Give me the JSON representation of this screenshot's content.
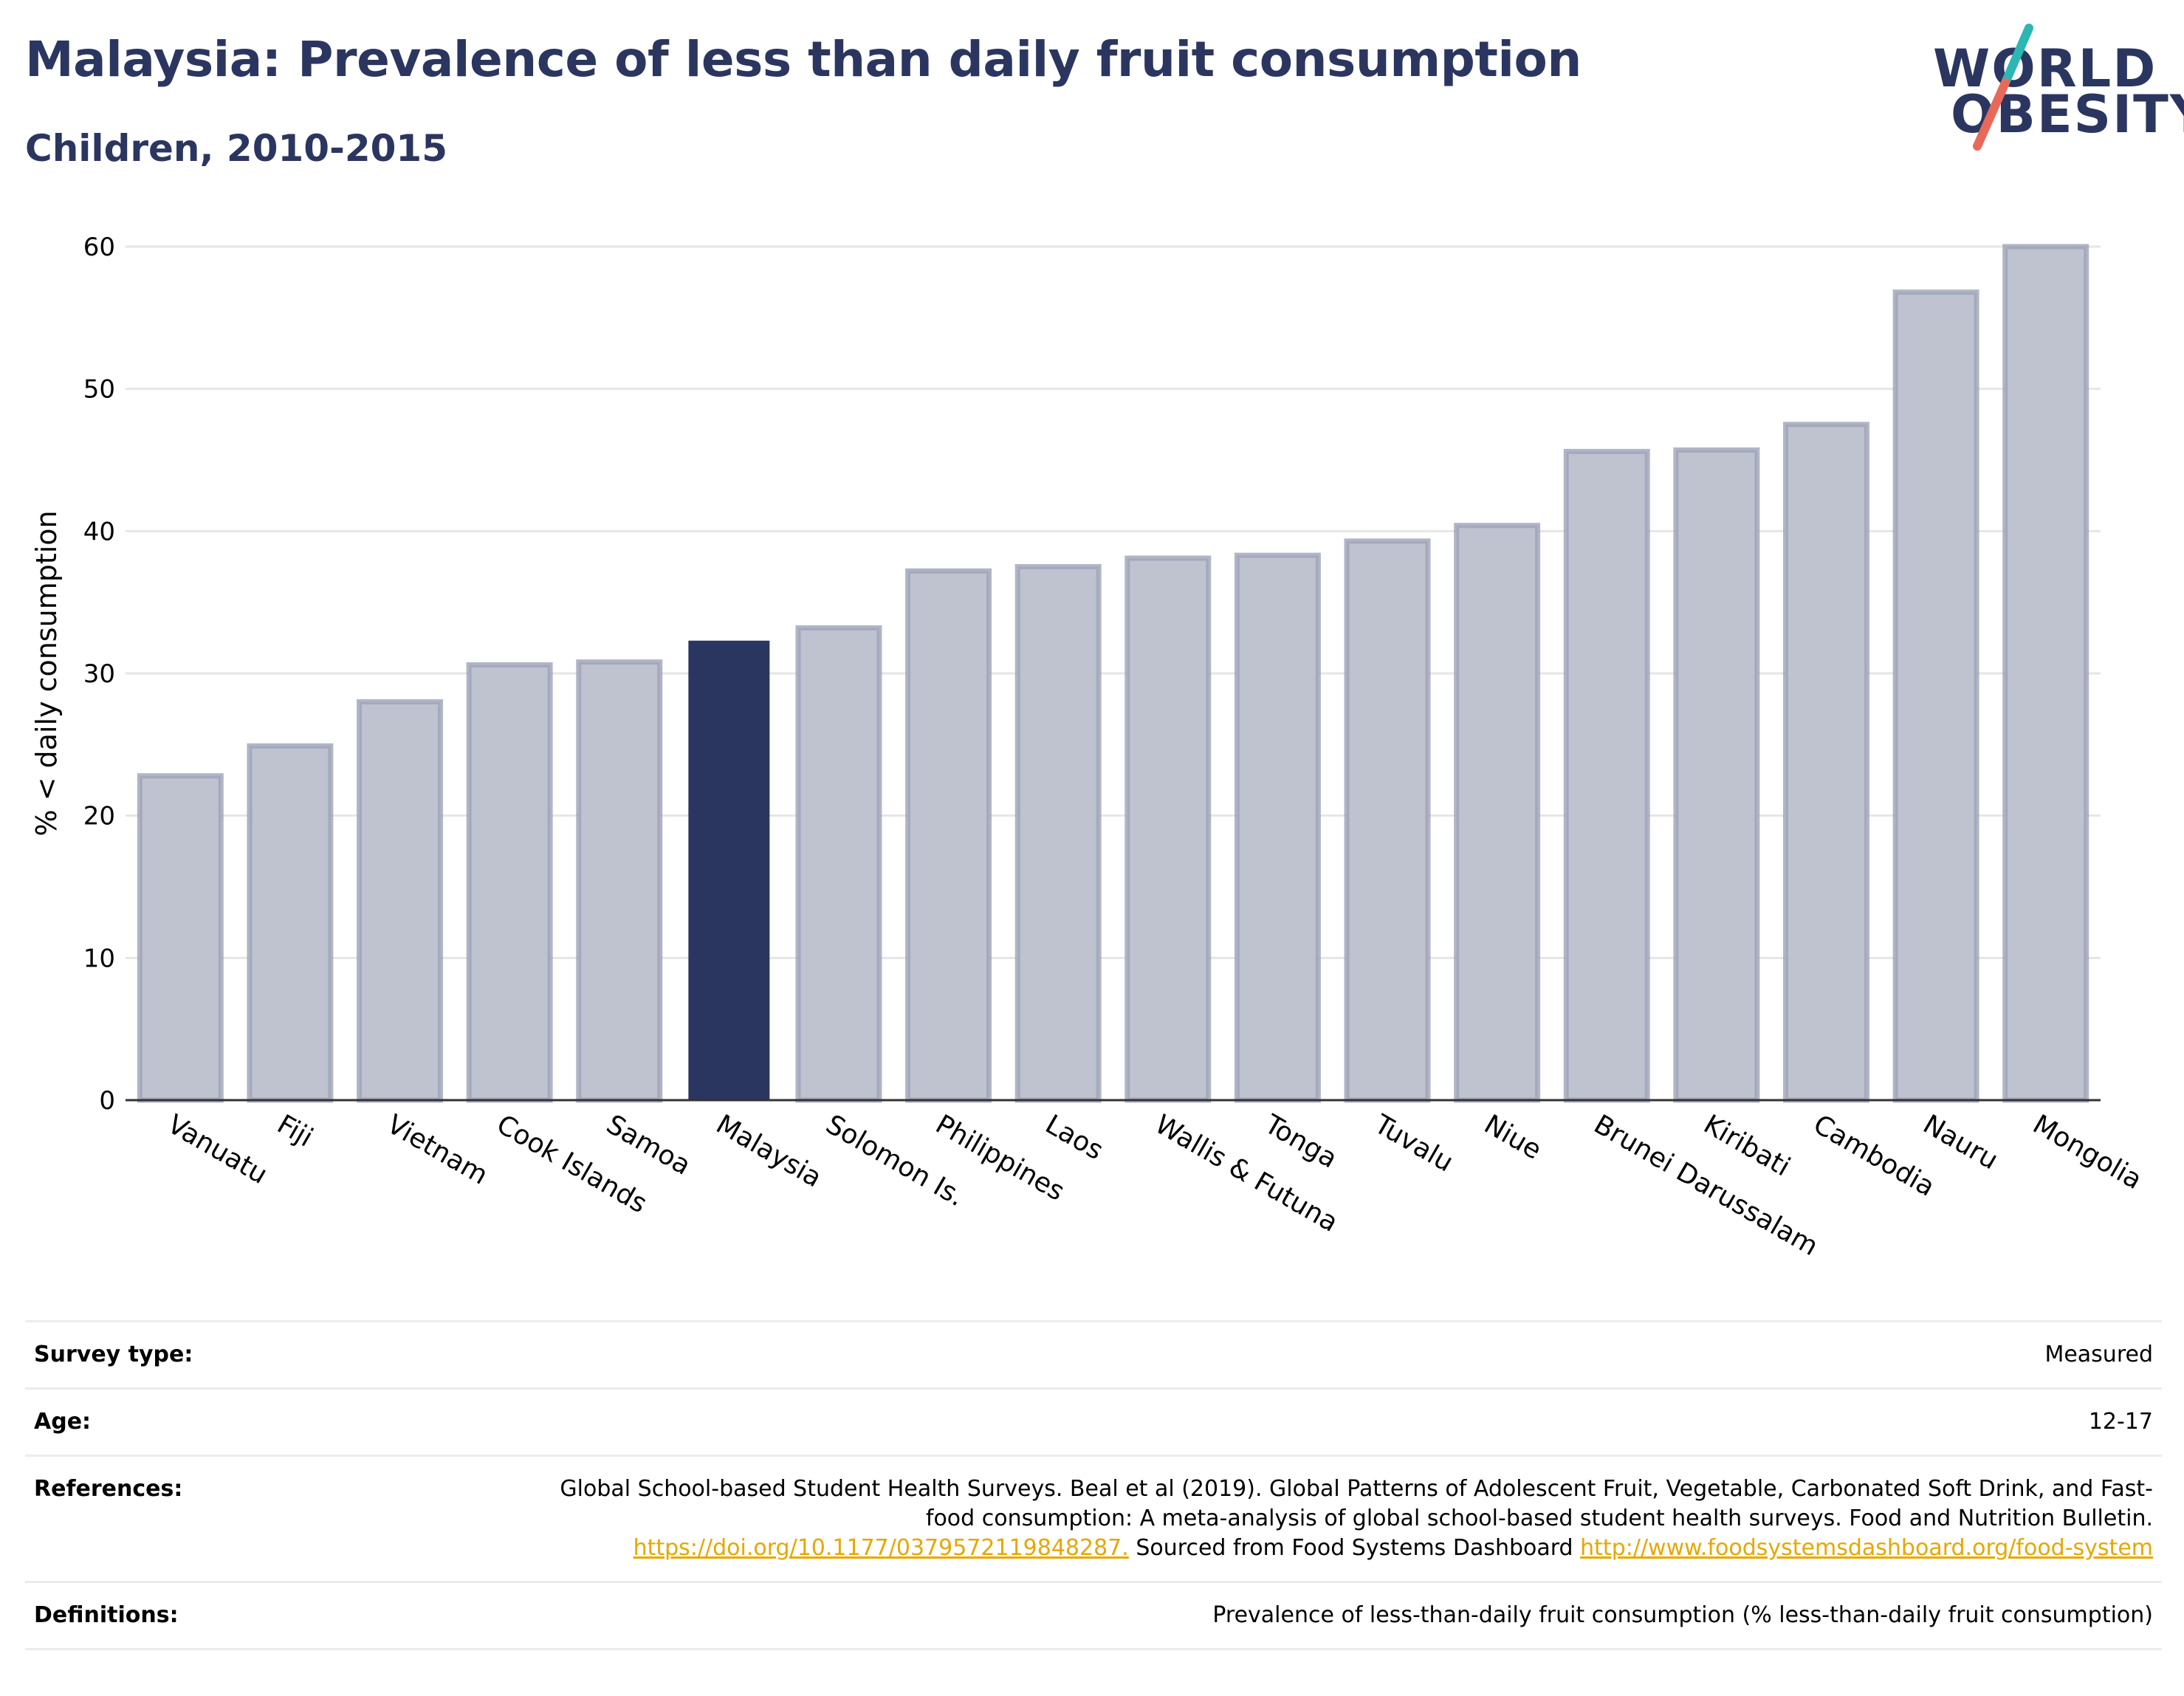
{
  "header": {
    "title": "Malaysia: Prevalence of less than daily fruit consumption",
    "subtitle": "Children, 2010-2015"
  },
  "logo": {
    "line1": "WORLD",
    "line2": "OBESITY",
    "colors": {
      "text": "#2b3660",
      "slash_top": "#2bb7b3",
      "slash_bottom": "#e8695a"
    }
  },
  "chart_data": {
    "type": "bar",
    "title": "",
    "xlabel": "",
    "ylabel": "% < daily consumption",
    "ylim": [
      0,
      60
    ],
    "yticks": [
      0,
      10,
      20,
      30,
      40,
      50,
      60
    ],
    "grid": true,
    "highlight": "Malaysia",
    "colors": {
      "bar": "#bfc2cf",
      "bar_edge": "#9ea3b8",
      "highlight": "#2b3660",
      "grid": "#e6e6e6"
    },
    "categories": [
      "Vanuatu",
      "Fiji",
      "Vietnam",
      "Cook Islands",
      "Samoa",
      "Malaysia",
      "Solomon Is.",
      "Philippines",
      "Laos",
      "Wallis & Futuna",
      "Tonga",
      "Tuvalu",
      "Niue",
      "Brunei Darussalam",
      "Kiribati",
      "Cambodia",
      "Nauru",
      "Mongolia"
    ],
    "values": [
      22.8,
      24.9,
      28.0,
      30.6,
      30.8,
      32.3,
      33.2,
      37.2,
      37.5,
      38.1,
      38.3,
      39.3,
      40.4,
      45.6,
      45.7,
      47.5,
      56.8,
      60.0
    ]
  },
  "meta": {
    "survey_label": "Survey type:",
    "survey_value": "Measured",
    "age_label": "Age:",
    "age_value": "12-17",
    "references_label": "References:",
    "references_text1": "Global School-based Student Health Surveys. Beal et al (2019). Global Patterns of Adolescent Fruit, Vegetable, Carbonated Soft Drink, and Fast-food consumption: A meta-analysis of global school-based student health surveys. Food and Nutrition Bulletin.",
    "references_link1": "https://doi.org/10.1177/0379572119848287.",
    "references_text2": "Sourced from Food Systems Dashboard",
    "references_link2": "http://www.foodsystemsdashboard.org/food-system",
    "definitions_label": "Definitions:",
    "definitions_value": "Prevalence of less-than-daily fruit consumption (% less-than-daily fruit consumption)"
  }
}
